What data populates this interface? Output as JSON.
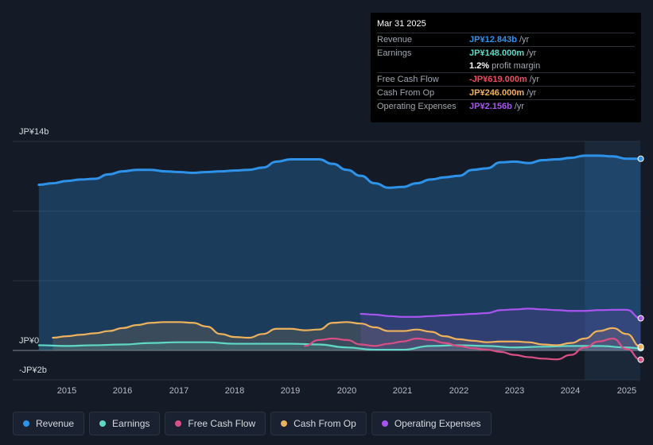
{
  "tooltip": {
    "date": "Mar 31 2025",
    "rows": [
      {
        "label": "Revenue",
        "value": "JP¥12.843b",
        "unit": "/yr",
        "color": "#2e93e8"
      },
      {
        "label": "Earnings",
        "value": "JP¥148.000m",
        "unit": "/yr",
        "color": "#5fd9c6"
      },
      {
        "label": "",
        "value": "1.2%",
        "unit": "profit margin",
        "color": "#ffffff"
      },
      {
        "label": "Free Cash Flow",
        "value": "-JP¥619.000m",
        "unit": "/yr",
        "color": "#ee4b5d"
      },
      {
        "label": "Cash From Op",
        "value": "JP¥246.000m",
        "unit": "/yr",
        "color": "#efb25c"
      },
      {
        "label": "Operating Expenses",
        "value": "JP¥2.156b",
        "unit": "/yr",
        "color": "#a855f0"
      }
    ]
  },
  "axis": {
    "top_label": "JP¥14b",
    "zero_label": "JP¥0",
    "bottom_label": "-JP¥2b"
  },
  "legend": [
    {
      "label": "Revenue",
      "color": "#2e93e8"
    },
    {
      "label": "Earnings",
      "color": "#5fd9c6"
    },
    {
      "label": "Free Cash Flow",
      "color": "#d94f85"
    },
    {
      "label": "Cash From Op",
      "color": "#efb25c"
    },
    {
      "label": "Operating Expenses",
      "color": "#a855f0"
    }
  ],
  "chart_data": {
    "type": "line",
    "title": "",
    "xlabel": "",
    "ylabel": "",
    "ylim": [
      -2,
      14
    ],
    "x_ticks": [
      "2015",
      "2016",
      "2017",
      "2018",
      "2019",
      "2020",
      "2021",
      "2022",
      "2023",
      "2024",
      "2025"
    ],
    "highlight_start": 2024.25,
    "series": [
      {
        "name": "Revenue",
        "color": "#2e93e8",
        "fill": true,
        "x": [
          2014.5,
          2014.75,
          2015.0,
          2015.25,
          2015.5,
          2015.75,
          2016.0,
          2016.25,
          2016.5,
          2016.75,
          2017.0,
          2017.25,
          2017.5,
          2017.75,
          2018.0,
          2018.25,
          2018.5,
          2018.75,
          2019.0,
          2019.25,
          2019.5,
          2019.75,
          2020.0,
          2020.25,
          2020.5,
          2020.75,
          2021.0,
          2021.25,
          2021.5,
          2021.75,
          2022.0,
          2022.25,
          2022.5,
          2022.75,
          2023.0,
          2023.25,
          2023.5,
          2023.75,
          2024.0,
          2024.25,
          2024.5,
          2024.75,
          2025.0,
          2025.25
        ],
        "values": [
          11.1,
          11.2,
          11.35,
          11.45,
          11.5,
          11.8,
          12.0,
          12.1,
          12.1,
          12.0,
          11.95,
          11.9,
          11.95,
          12.0,
          12.05,
          12.1,
          12.25,
          12.65,
          12.8,
          12.8,
          12.8,
          12.5,
          12.1,
          11.7,
          11.2,
          10.9,
          10.95,
          11.2,
          11.45,
          11.6,
          11.7,
          12.1,
          12.2,
          12.6,
          12.65,
          12.55,
          12.75,
          12.8,
          12.9,
          13.05,
          13.05,
          13.0,
          12.843,
          12.843
        ]
      },
      {
        "name": "Earnings",
        "color": "#5fd9c6",
        "fill": true,
        "x": [
          2014.5,
          2015.0,
          2015.5,
          2016.0,
          2016.5,
          2017.0,
          2017.5,
          2018.0,
          2018.5,
          2019.0,
          2019.5,
          2020.0,
          2020.5,
          2021.0,
          2021.5,
          2022.0,
          2022.5,
          2023.0,
          2023.5,
          2024.0,
          2024.5,
          2025.0,
          2025.25
        ],
        "values": [
          0.35,
          0.3,
          0.35,
          0.4,
          0.5,
          0.55,
          0.55,
          0.45,
          0.45,
          0.45,
          0.4,
          0.2,
          0.05,
          0.05,
          0.3,
          0.35,
          0.3,
          0.2,
          0.25,
          0.3,
          0.3,
          0.2,
          0.148
        ]
      },
      {
        "name": "Free Cash Flow",
        "color": "#d94f85",
        "fill": false,
        "x": [
          2019.25,
          2019.5,
          2019.75,
          2020.0,
          2020.25,
          2020.5,
          2020.75,
          2021.0,
          2021.25,
          2021.5,
          2021.75,
          2022.0,
          2022.25,
          2022.5,
          2022.75,
          2023.0,
          2023.25,
          2023.5,
          2023.75,
          2024.0,
          2024.25,
          2024.5,
          2024.75,
          2025.0,
          2025.25
        ],
        "values": [
          0.3,
          0.7,
          0.8,
          0.7,
          0.4,
          0.3,
          0.45,
          0.6,
          0.8,
          0.7,
          0.5,
          0.3,
          0.15,
          0.05,
          -0.1,
          -0.3,
          -0.45,
          -0.55,
          -0.6,
          -0.3,
          0.2,
          0.6,
          0.8,
          0.1,
          -0.619
        ]
      },
      {
        "name": "Cash From Op",
        "color": "#efb25c",
        "fill": true,
        "x": [
          2014.75,
          2015.0,
          2015.25,
          2015.5,
          2015.75,
          2016.0,
          2016.25,
          2016.5,
          2016.75,
          2017.0,
          2017.25,
          2017.5,
          2017.75,
          2018.0,
          2018.25,
          2018.5,
          2018.75,
          2019.0,
          2019.25,
          2019.5,
          2019.75,
          2020.0,
          2020.25,
          2020.5,
          2020.75,
          2021.0,
          2021.25,
          2021.5,
          2021.75,
          2022.0,
          2022.25,
          2022.5,
          2022.75,
          2023.0,
          2023.25,
          2023.5,
          2023.75,
          2024.0,
          2024.25,
          2024.5,
          2024.75,
          2025.0,
          2025.25
        ],
        "values": [
          0.85,
          0.95,
          1.05,
          1.15,
          1.3,
          1.5,
          1.7,
          1.85,
          1.9,
          1.9,
          1.85,
          1.6,
          1.1,
          0.9,
          0.85,
          1.1,
          1.45,
          1.45,
          1.35,
          1.4,
          1.85,
          1.9,
          1.8,
          1.55,
          1.3,
          1.3,
          1.4,
          1.25,
          0.95,
          0.75,
          0.65,
          0.55,
          0.6,
          0.6,
          0.55,
          0.4,
          0.35,
          0.5,
          0.8,
          1.3,
          1.5,
          1.1,
          0.246
        ]
      },
      {
        "name": "Operating Expenses",
        "color": "#a855f0",
        "fill": true,
        "x": [
          2020.25,
          2020.5,
          2020.75,
          2021.0,
          2021.25,
          2021.5,
          2021.75,
          2022.0,
          2022.25,
          2022.5,
          2022.75,
          2023.0,
          2023.25,
          2023.5,
          2023.75,
          2024.0,
          2024.25,
          2024.5,
          2024.75,
          2025.0,
          2025.25
        ],
        "values": [
          2.45,
          2.4,
          2.3,
          2.25,
          2.25,
          2.3,
          2.35,
          2.4,
          2.45,
          2.5,
          2.7,
          2.75,
          2.8,
          2.75,
          2.7,
          2.65,
          2.65,
          2.7,
          2.72,
          2.72,
          2.156
        ]
      }
    ]
  }
}
